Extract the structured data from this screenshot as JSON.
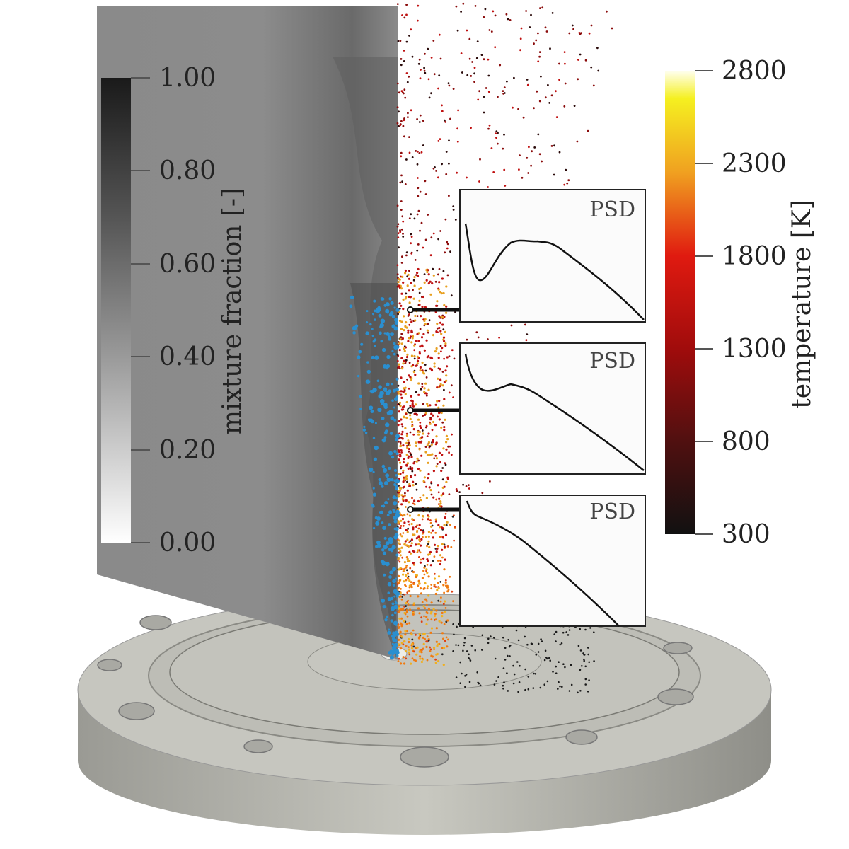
{
  "mixture_fraction_bar": {
    "title": "mixture fraction [-]",
    "ticks": [
      "1.00",
      "0.80",
      "0.60",
      "0.40",
      "0.20",
      "0.00"
    ],
    "colors": {
      "high": "#1a1a1a",
      "low": "#ffffff"
    }
  },
  "temperature_bar": {
    "title": "temperature [K]",
    "ticks": [
      "2800",
      "2300",
      "1800",
      "1300",
      "800",
      "300"
    ],
    "colors": [
      "#111111",
      "#5a0c0c",
      "#a00c0c",
      "#e01a10",
      "#f07a10",
      "#f0b020",
      "#f5f020",
      "#fffff0"
    ]
  },
  "insets": [
    {
      "label": "PSD"
    },
    {
      "label": "PSD"
    },
    {
      "label": "PSD"
    }
  ],
  "colors": {
    "plane_gray": "#8c8c8c",
    "flange": "#c4c4bc",
    "spray_blue": "#2a8fd0",
    "spray_orange": "#e8781c"
  }
}
